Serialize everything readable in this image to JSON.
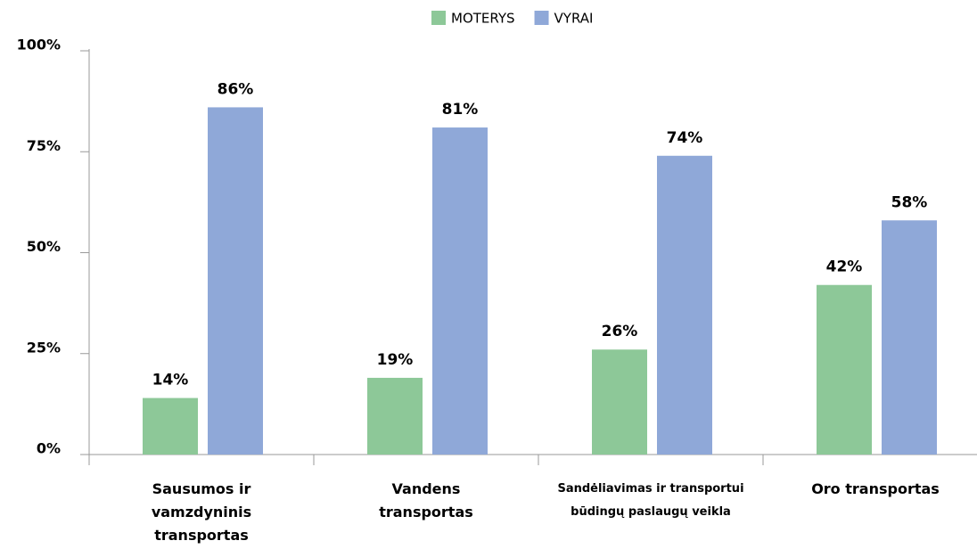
{
  "chart_data": {
    "type": "bar",
    "categories": [
      "Sausumos ir vamzdyninis transportas",
      "Vandens transportas",
      "Sandėliavimas ir transportui būdingų paslaugų veikla",
      "Oro transportas"
    ],
    "series": [
      {
        "name": "MOTERYS",
        "color": "#8dc898",
        "values": [
          14,
          19,
          26,
          42
        ],
        "value_labels": [
          "14%",
          "19%",
          "26%",
          "42%"
        ]
      },
      {
        "name": "VYRAI",
        "color": "#8fa8d8",
        "values": [
          86,
          81,
          74,
          58
        ],
        "value_labels": [
          "86%",
          "81%",
          "74%",
          "58%"
        ]
      }
    ],
    "ylim": [
      0,
      100
    ],
    "yticks": [
      {
        "value": 0,
        "label": "0%"
      },
      {
        "value": 25,
        "label": "25%"
      },
      {
        "value": 50,
        "label": "50%"
      },
      {
        "value": 75,
        "label": "75%"
      },
      {
        "value": 100,
        "label": "100%"
      }
    ],
    "legend": "top"
  }
}
